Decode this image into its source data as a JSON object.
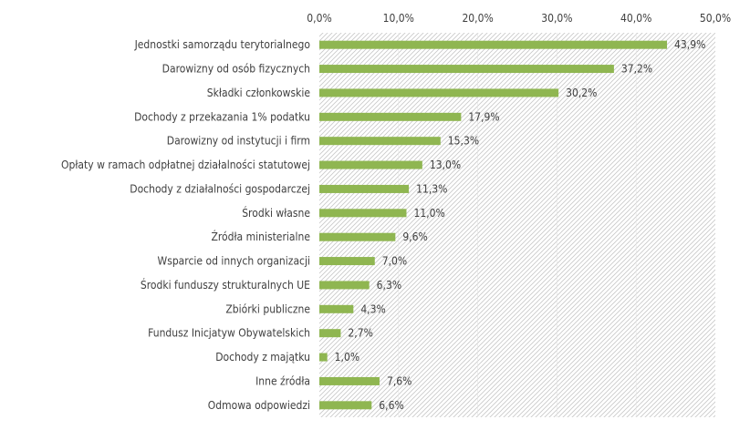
{
  "chart_data": {
    "type": "bar",
    "orientation": "horizontal",
    "categories": [
      "Jednostki samorządu terytorialnego",
      "Darowizny od osób fizycznych",
      "Składki członkowskie",
      "Dochody z przekazania 1% podatku",
      "Darowizny od instytucji i firm",
      "Opłaty w ramach odpłatnej działalności statutowej",
      "Dochody z działalności gospodarczej",
      "Środki własne",
      "Źródła ministerialne",
      "Wsparcie od innych organizacji",
      "Środki funduszy strukturalnych UE",
      "Zbiórki publiczne",
      "Fundusz Inicjatyw Obywatelskich",
      "Dochody z majątku",
      "Inne źródła",
      "Odmowa odpowiedzi"
    ],
    "values": [
      43.9,
      37.2,
      30.2,
      17.9,
      15.3,
      13.0,
      11.3,
      11.0,
      9.6,
      7.0,
      6.3,
      4.3,
      2.7,
      1.0,
      7.6,
      6.6
    ],
    "value_labels": [
      "43,9%",
      "37,2%",
      "30,2%",
      "17,9%",
      "15,3%",
      "13,0%",
      "11,3%",
      "11,0%",
      "9,6%",
      "7,0%",
      "6,3%",
      "4,3%",
      "2,7%",
      "1,0%",
      "7,6%",
      "6,6%"
    ],
    "x_ticks": [
      0,
      10,
      20,
      30,
      40,
      50
    ],
    "x_tick_labels": [
      "0,0%",
      "10,0%",
      "20,0%",
      "30,0%",
      "40,0%",
      "50,0%"
    ],
    "xlim": [
      0,
      50
    ],
    "axis_position": "top",
    "background": "diagonal-hatch",
    "grid": true,
    "legend": "none",
    "bar_color": "#8fb651",
    "text_color": "#404040",
    "hatch_color": "#c8c8c8"
  }
}
